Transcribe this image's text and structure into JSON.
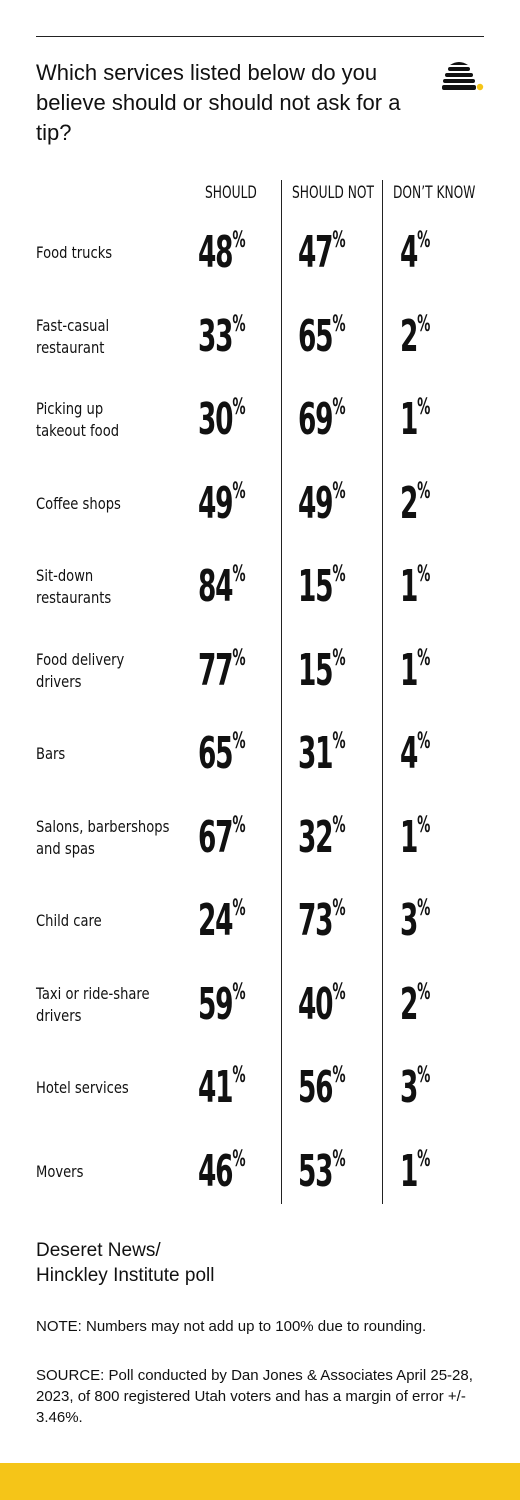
{
  "title": "Which services listed below do you believe should or should not ask for a tip?",
  "columns": [
    "SHOULD",
    "SHOULD NOT",
    "DON’T KNOW"
  ],
  "publisher": "Deseret News/\nHinckley Institute poll",
  "note": "NOTE: Numbers may not add up to 100% due to rounding.",
  "source": "SOURCE: Poll conducted by Dan Jones & Associates April 25-28, 2023, of 800 registered Utah voters and has a margin of error +/- 3.46%.",
  "colors": {
    "accent": "#f5c518",
    "text": "#111111",
    "rule": "#222222"
  },
  "icons": {
    "logo": "beehive-icon"
  },
  "chart_data": {
    "type": "table",
    "unit": "%",
    "series": [
      {
        "name": "SHOULD"
      },
      {
        "name": "SHOULD NOT"
      },
      {
        "name": "DON’T KNOW"
      }
    ],
    "rows": [
      {
        "label": "Food trucks",
        "values": [
          48,
          47,
          4
        ]
      },
      {
        "label": "Fast-casual\nrestaurant",
        "values": [
          33,
          65,
          2
        ]
      },
      {
        "label": "Picking up\ntakeout food",
        "values": [
          30,
          69,
          1
        ]
      },
      {
        "label": "Coffee shops",
        "values": [
          49,
          49,
          2
        ]
      },
      {
        "label": "Sit-down\nrestaurants",
        "values": [
          84,
          15,
          1
        ]
      },
      {
        "label": "Food delivery\ndrivers",
        "values": [
          77,
          15,
          1
        ]
      },
      {
        "label": "Bars",
        "values": [
          65,
          31,
          4
        ]
      },
      {
        "label": "Salons, barbershops\nand spas",
        "values": [
          67,
          32,
          1
        ]
      },
      {
        "label": "Child care",
        "values": [
          24,
          73,
          3
        ]
      },
      {
        "label": "Taxi or ride-share\ndrivers",
        "values": [
          59,
          40,
          2
        ]
      },
      {
        "label": "Hotel services",
        "values": [
          41,
          56,
          3
        ]
      },
      {
        "label": "Movers",
        "values": [
          46,
          53,
          1
        ]
      }
    ]
  }
}
